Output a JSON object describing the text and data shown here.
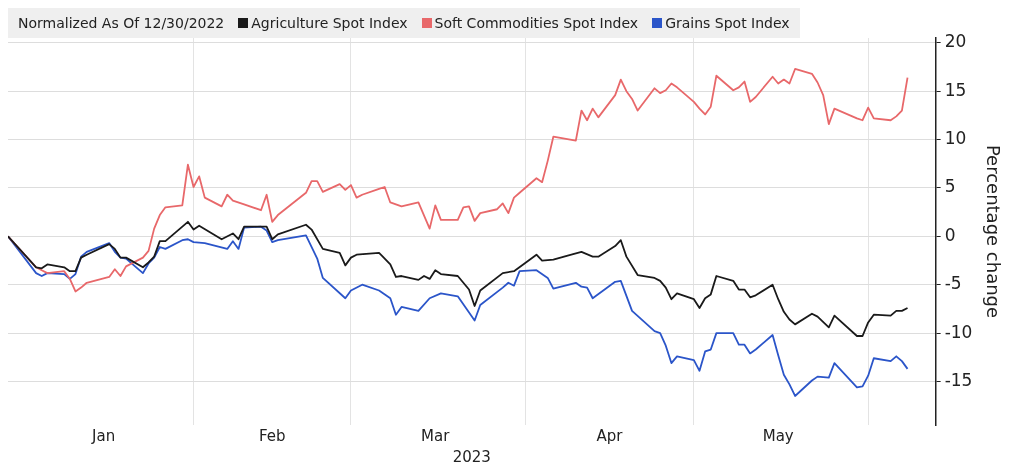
{
  "chart_data": {
    "type": "line",
    "legend_title": "Normalized As Of 12/30/2022",
    "xlabel": "2023",
    "ylabel": "Percentage change",
    "legend": "top",
    "grid": true,
    "xlim": [
      "2022-12-30",
      "2023-06-13"
    ],
    "ylim": [
      -19.5,
      20.5
    ],
    "xticks": [
      {
        "value": "2023-01-16",
        "label": "Jan"
      },
      {
        "value": "2023-02-01",
        "label": null
      },
      {
        "value": "2023-02-15",
        "label": "Feb"
      },
      {
        "value": "2023-03-01",
        "label": null
      },
      {
        "value": "2023-03-16",
        "label": "Mar"
      },
      {
        "value": "2023-04-01",
        "label": null
      },
      {
        "value": "2023-04-16",
        "label": "Apr"
      },
      {
        "value": "2023-05-01",
        "label": null
      },
      {
        "value": "2023-05-16",
        "label": "May"
      },
      {
        "value": "2023-06-01",
        "label": null
      }
    ],
    "yticks": [
      -15,
      -10,
      -5,
      0,
      5,
      10,
      15,
      20
    ],
    "series": [
      {
        "name": "Agriculture Spot Index",
        "color": "#1a1a1a",
        "x": [
          "2022-12-30",
          "2023-01-04",
          "2023-01-05",
          "2023-01-06",
          "2023-01-09",
          "2023-01-10",
          "2023-01-11",
          "2023-01-12",
          "2023-01-13",
          "2023-01-17",
          "2023-01-18",
          "2023-01-19",
          "2023-01-20",
          "2023-01-23",
          "2023-01-24",
          "2023-01-25",
          "2023-01-26",
          "2023-01-27",
          "2023-01-31",
          "2023-02-01",
          "2023-02-02",
          "2023-02-06",
          "2023-02-08",
          "2023-02-09",
          "2023-02-10",
          "2023-02-14",
          "2023-02-15",
          "2023-02-16",
          "2023-02-21",
          "2023-02-22",
          "2023-02-24",
          "2023-02-27",
          "2023-02-28",
          "2023-03-01",
          "2023-03-02",
          "2023-03-06",
          "2023-03-08",
          "2023-03-09",
          "2023-03-10",
          "2023-03-13",
          "2023-03-14",
          "2023-03-15",
          "2023-03-16",
          "2023-03-17",
          "2023-03-20",
          "2023-03-22",
          "2023-03-23",
          "2023-03-24",
          "2023-03-28",
          "2023-03-30",
          "2023-04-03",
          "2023-04-04",
          "2023-04-06",
          "2023-04-11",
          "2023-04-13",
          "2023-04-14",
          "2023-04-17",
          "2023-04-18",
          "2023-04-19",
          "2023-04-21",
          "2023-04-24",
          "2023-04-25",
          "2023-04-26",
          "2023-04-27",
          "2023-04-28",
          "2023-05-01",
          "2023-05-02",
          "2023-05-03",
          "2023-05-04",
          "2023-05-05",
          "2023-05-08",
          "2023-05-09",
          "2023-05-10",
          "2023-05-11",
          "2023-05-12",
          "2023-05-15",
          "2023-05-16",
          "2023-05-17",
          "2023-05-18",
          "2023-05-19",
          "2023-05-22",
          "2023-05-23",
          "2023-05-25",
          "2023-05-26",
          "2023-05-30",
          "2023-05-31",
          "2023-06-01",
          "2023-06-02",
          "2023-06-05",
          "2023-06-06",
          "2023-06-07",
          "2023-06-08"
        ],
        "values": [
          0,
          -3.2,
          -3.3,
          -2.9,
          -3.2,
          -3.6,
          -3.6,
          -2.2,
          -1.9,
          -0.8,
          -1.3,
          -2.2,
          -2.2,
          -3.2,
          -2.7,
          -2.1,
          -0.5,
          -0.5,
          1.5,
          0.7,
          1.1,
          -0.3,
          0.3,
          -0.3,
          1.0,
          1.0,
          -0.3,
          0.2,
          1.2,
          0.7,
          -1.3,
          -1.7,
          -3.0,
          -2.2,
          -1.9,
          -1.7,
          -2.9,
          -4.2,
          -4.1,
          -4.5,
          -4.1,
          -4.4,
          -3.5,
          -3.9,
          -4.1,
          -5.5,
          -7.2,
          -5.6,
          -3.8,
          -3.6,
          -1.9,
          -2.5,
          -2.4,
          -1.6,
          -2.1,
          -2.1,
          -1.0,
          -0.4,
          -2.1,
          -4.0,
          -4.3,
          -4.6,
          -5.3,
          -6.5,
          -5.9,
          -6.5,
          -7.4,
          -6.4,
          -6.0,
          -4.1,
          -4.6,
          -5.5,
          -5.5,
          -6.3,
          -6.1,
          -5.0,
          -6.5,
          -7.8,
          -8.6,
          -9.1,
          -8.0,
          -8.3,
          -9.4,
          -8.2,
          -10.3,
          -10.3,
          -8.9,
          -8.1,
          -8.2,
          -7.7,
          -7.7,
          -7.4
        ]
      },
      {
        "name": "Soft Commodities Spot Index",
        "color": "#e8686a",
        "x": [
          "2022-12-30",
          "2023-01-04",
          "2023-01-05",
          "2023-01-06",
          "2023-01-09",
          "2023-01-10",
          "2023-01-11",
          "2023-01-12",
          "2023-01-13",
          "2023-01-17",
          "2023-01-18",
          "2023-01-19",
          "2023-01-20",
          "2023-01-23",
          "2023-01-24",
          "2023-01-25",
          "2023-01-26",
          "2023-01-27",
          "2023-01-30",
          "2023-01-31",
          "2023-02-01",
          "2023-02-02",
          "2023-02-03",
          "2023-02-06",
          "2023-02-07",
          "2023-02-08",
          "2023-02-10",
          "2023-02-13",
          "2023-02-14",
          "2023-02-15",
          "2023-02-16",
          "2023-02-21",
          "2023-02-22",
          "2023-02-23",
          "2023-02-24",
          "2023-02-27",
          "2023-02-28",
          "2023-03-01",
          "2023-03-02",
          "2023-03-03",
          "2023-03-06",
          "2023-03-07",
          "2023-03-08",
          "2023-03-10",
          "2023-03-13",
          "2023-03-15",
          "2023-03-16",
          "2023-03-17",
          "2023-03-20",
          "2023-03-21",
          "2023-03-22",
          "2023-03-23",
          "2023-03-24",
          "2023-03-27",
          "2023-03-28",
          "2023-03-29",
          "2023-03-30",
          "2023-03-31",
          "2023-04-03",
          "2023-04-04",
          "2023-04-05",
          "2023-04-06",
          "2023-04-10",
          "2023-04-11",
          "2023-04-12",
          "2023-04-13",
          "2023-04-14",
          "2023-04-17",
          "2023-04-18",
          "2023-04-19",
          "2023-04-20",
          "2023-04-21",
          "2023-04-24",
          "2023-04-25",
          "2023-04-26",
          "2023-04-27",
          "2023-04-28",
          "2023-05-01",
          "2023-05-02",
          "2023-05-03",
          "2023-05-04",
          "2023-05-05",
          "2023-05-08",
          "2023-05-09",
          "2023-05-10",
          "2023-05-11",
          "2023-05-12",
          "2023-05-15",
          "2023-05-16",
          "2023-05-17",
          "2023-05-18",
          "2023-05-19",
          "2023-05-22",
          "2023-05-23",
          "2023-05-24",
          "2023-05-25",
          "2023-05-26",
          "2023-05-30",
          "2023-05-31",
          "2023-06-01",
          "2023-06-02",
          "2023-06-05",
          "2023-06-06",
          "2023-06-07",
          "2023-06-08"
        ],
        "values": [
          0,
          -3.2,
          -3.5,
          -3.8,
          -3.6,
          -4.4,
          -5.7,
          -5.3,
          -4.8,
          -4.2,
          -3.4,
          -4.1,
          -3.1,
          -2.2,
          -1.5,
          0.8,
          2.2,
          3.0,
          3.2,
          7.4,
          5.1,
          6.2,
          4.0,
          3.1,
          4.3,
          3.7,
          3.3,
          2.7,
          4.3,
          1.5,
          2.2,
          4.5,
          5.7,
          5.7,
          4.6,
          5.4,
          4.8,
          5.3,
          4.0,
          4.3,
          4.9,
          5.1,
          3.5,
          3.1,
          3.5,
          0.8,
          3.2,
          1.7,
          1.7,
          3.0,
          3.1,
          1.6,
          2.4,
          2.8,
          3.4,
          2.4,
          4.0,
          4.5,
          6.0,
          5.6,
          7.8,
          10.3,
          9.9,
          13.0,
          12.0,
          13.2,
          12.3,
          14.6,
          16.2,
          15.0,
          14.2,
          13.0,
          15.3,
          14.8,
          15.1,
          15.8,
          15.4,
          13.9,
          13.2,
          12.6,
          13.4,
          16.6,
          15.1,
          15.4,
          16.0,
          13.9,
          14.4,
          16.5,
          15.8,
          16.2,
          15.8,
          17.3,
          16.8,
          15.9,
          14.6,
          11.6,
          13.2,
          12.2,
          12.0,
          13.3,
          12.2,
          12.0,
          12.4,
          13.0,
          16.4
        ]
      },
      {
        "name": "Grains Spot Index",
        "color": "#2b55c9",
        "x": [
          "2022-12-30",
          "2023-01-04",
          "2023-01-05",
          "2023-01-06",
          "2023-01-09",
          "2023-01-10",
          "2023-01-11",
          "2023-01-12",
          "2023-01-13",
          "2023-01-17",
          "2023-01-18",
          "2023-01-19",
          "2023-01-20",
          "2023-01-23",
          "2023-01-24",
          "2023-01-25",
          "2023-01-26",
          "2023-01-27",
          "2023-01-30",
          "2023-01-31",
          "2023-02-01",
          "2023-02-03",
          "2023-02-07",
          "2023-02-08",
          "2023-02-09",
          "2023-02-10",
          "2023-02-13",
          "2023-02-14",
          "2023-02-15",
          "2023-02-16",
          "2023-02-21",
          "2023-02-23",
          "2023-02-24",
          "2023-02-28",
          "2023-03-01",
          "2023-03-03",
          "2023-03-06",
          "2023-03-08",
          "2023-03-09",
          "2023-03-10",
          "2023-03-13",
          "2023-03-15",
          "2023-03-17",
          "2023-03-20",
          "2023-03-23",
          "2023-03-24",
          "2023-03-28",
          "2023-03-29",
          "2023-03-30",
          "2023-03-31",
          "2023-04-03",
          "2023-04-05",
          "2023-04-06",
          "2023-04-10",
          "2023-04-11",
          "2023-04-12",
          "2023-04-13",
          "2023-04-17",
          "2023-04-18",
          "2023-04-20",
          "2023-04-24",
          "2023-04-25",
          "2023-04-26",
          "2023-04-27",
          "2023-04-28",
          "2023-05-01",
          "2023-05-02",
          "2023-05-03",
          "2023-05-04",
          "2023-05-05",
          "2023-05-08",
          "2023-05-09",
          "2023-05-10",
          "2023-05-11",
          "2023-05-12",
          "2023-05-15",
          "2023-05-16",
          "2023-05-17",
          "2023-05-18",
          "2023-05-19",
          "2023-05-22",
          "2023-05-23",
          "2023-05-25",
          "2023-05-26",
          "2023-05-30",
          "2023-05-31",
          "2023-06-01",
          "2023-06-02",
          "2023-06-05",
          "2023-06-06",
          "2023-06-07",
          "2023-06-08"
        ],
        "values": [
          0,
          -3.8,
          -4.1,
          -3.8,
          -3.9,
          -4.4,
          -3.9,
          -2.1,
          -1.6,
          -0.7,
          -1.6,
          -2.2,
          -2.3,
          -3.8,
          -2.8,
          -2.2,
          -1.1,
          -1.3,
          -0.4,
          -0.3,
          -0.6,
          -0.7,
          -1.3,
          -0.5,
          -1.3,
          0.9,
          1.0,
          0.6,
          -0.6,
          -0.4,
          0.1,
          -2.3,
          -4.3,
          -6.4,
          -5.6,
          -5.0,
          -5.6,
          -6.4,
          -8.1,
          -7.3,
          -7.7,
          -6.4,
          -5.9,
          -6.2,
          -8.7,
          -7.1,
          -5.3,
          -4.8,
          -5.1,
          -3.6,
          -3.5,
          -4.3,
          -5.4,
          -4.8,
          -5.2,
          -5.3,
          -6.4,
          -4.7,
          -4.6,
          -7.7,
          -9.8,
          -10.0,
          -11.3,
          -13.1,
          -12.4,
          -12.8,
          -13.9,
          -11.9,
          -11.7,
          -10.0,
          -10.0,
          -11.2,
          -11.2,
          -12.1,
          -11.7,
          -10.2,
          -12.3,
          -14.3,
          -15.3,
          -16.5,
          -14.9,
          -14.5,
          -14.6,
          -13.1,
          -15.6,
          -15.5,
          -14.4,
          -12.6,
          -12.9,
          -12.4,
          -12.9,
          -13.7
        ]
      }
    ]
  }
}
